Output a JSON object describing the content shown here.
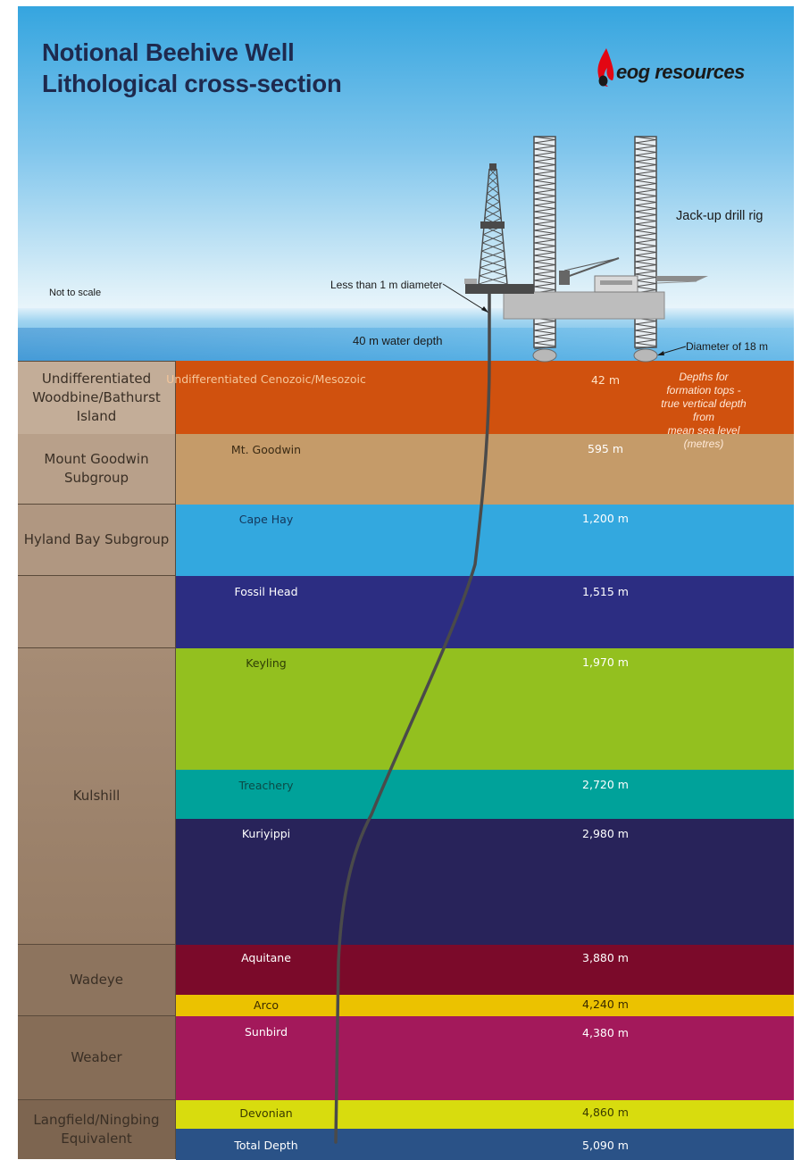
{
  "title_line1": "Notional Beehive Well",
  "title_line2": "Lithological cross-section",
  "logo_text": "eog resources",
  "labels": {
    "not_to_scale": "Not to scale",
    "pipe_diameter": "Less than 1 m diameter",
    "water_depth": "40 m water depth",
    "rig": "Jack-up drill rig",
    "leg_diameter": "Diameter of 18 m",
    "depth_note": "Depths for formation tops -\ntrue vertical depth from\nmean sea level (metres)"
  },
  "groups": [
    {
      "name": "Undifferentiated Woodbine/Bathurst Island"
    },
    {
      "name": "Mount Goodwin Subgroup"
    },
    {
      "name": "Hyland Bay Subgroup"
    },
    {
      "name": ""
    },
    {
      "name": "Kulshill"
    },
    {
      "name": "Wadeye"
    },
    {
      "name": "Weaber"
    },
    {
      "name": "Langfield/Ningbing Equivalent"
    }
  ],
  "formations": [
    {
      "name": "Undifferentiated Cenozoic/Mesozoic",
      "depth": "42 m",
      "color": "#d0510e"
    },
    {
      "name": "Mt. Goodwin",
      "depth": "595 m",
      "color": "#c59b69"
    },
    {
      "name": "Cape Hay",
      "depth": "1,200 m",
      "color": "#33a8df"
    },
    {
      "name": "Fossil Head",
      "depth": "1,515 m",
      "color": "#2c2d82"
    },
    {
      "name": "Keyling",
      "depth": "1,970 m",
      "color": "#93c01f"
    },
    {
      "name": "Treachery",
      "depth": "2,720 m",
      "color": "#00a29a"
    },
    {
      "name": "Kuriyippi",
      "depth": "2,980 m",
      "color": "#28235a"
    },
    {
      "name": "Aquitane",
      "depth": "3,880 m",
      "color": "#7b0a2a"
    },
    {
      "name": "Arco",
      "depth": "4,240 m",
      "color": "#ebc200"
    },
    {
      "name": "Sunbird",
      "depth": "4,380 m",
      "color": "#a3195b"
    },
    {
      "name": "Devonian",
      "depth": "4,860 m",
      "color": "#d8dc0e"
    },
    {
      "name": "Total Depth",
      "depth": "5,090 m",
      "color": "#2a5287"
    }
  ]
}
